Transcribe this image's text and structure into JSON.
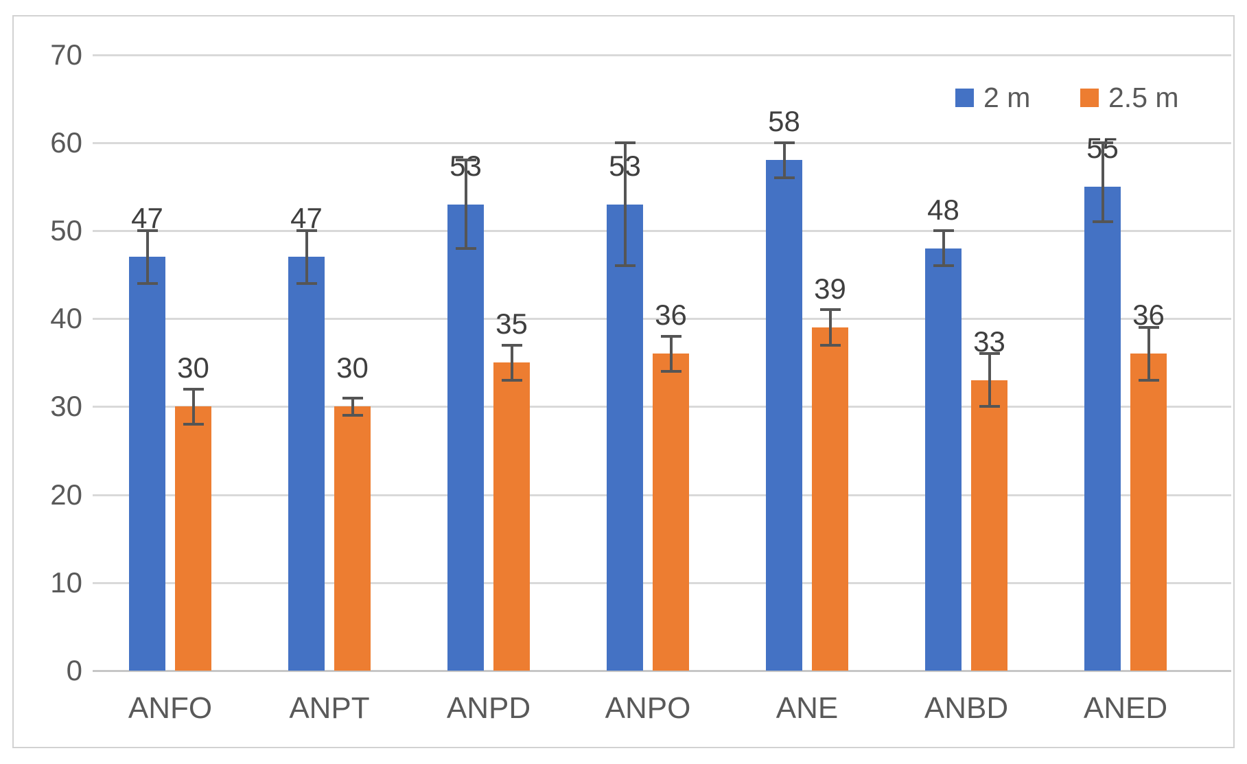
{
  "chart_data": {
    "type": "bar",
    "title": "",
    "xlabel": "",
    "ylabel": "",
    "categories": [
      "ANFO",
      "ANPT",
      "ANPD",
      "ANPO",
      "ANE",
      "ANBD",
      "ANED"
    ],
    "series": [
      {
        "name": "2 m",
        "color": "#4472C4",
        "values": [
          47,
          47,
          53,
          53,
          58,
          48,
          55
        ],
        "error_low": [
          44,
          44,
          48,
          46,
          56,
          46,
          51
        ],
        "error_high": [
          50,
          50,
          58,
          60,
          60,
          50,
          60
        ]
      },
      {
        "name": "2.5 m",
        "color": "#ED7D31",
        "values": [
          30,
          30,
          35,
          36,
          39,
          33,
          36
        ],
        "error_low": [
          28,
          29,
          33,
          34,
          37,
          30,
          33
        ],
        "error_high": [
          32,
          31,
          37,
          38,
          41,
          36,
          39
        ]
      }
    ],
    "y_ticks": [
      0,
      10,
      20,
      30,
      40,
      50,
      60,
      70
    ],
    "ylim": [
      0,
      70
    ],
    "grid": true,
    "legend_position": "top-right",
    "error_bar_color": "#555555",
    "gridline_color": "#d9d9d9",
    "tick_label_color": "#595959",
    "data_label_color": "#3f3f3f"
  }
}
